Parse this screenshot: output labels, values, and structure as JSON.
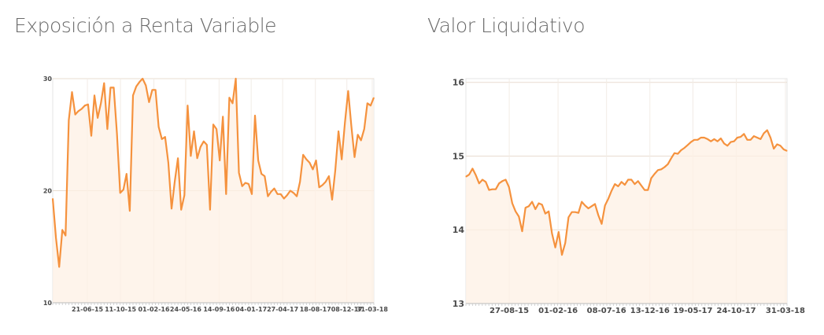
{
  "chart_data": [
    {
      "type": "area",
      "title": "Exposición a Renta Variable",
      "xlabel": "",
      "ylabel": "",
      "ylim": [
        10,
        30
      ],
      "y_ticks": [
        "30",
        "20",
        "10"
      ],
      "x_ticks": [
        "21-06-15",
        "11-10-15",
        "01-02-16",
        "24-05-16",
        "14-09-16",
        "04-01-17",
        "27-04-17",
        "18-08-17",
        "08-12-17",
        "31-03-18"
      ],
      "grid": true,
      "color": "#f5923e",
      "values": [
        19.3,
        15.8,
        13.2,
        16.5,
        16.0,
        26.3,
        28.8,
        26.8,
        27.1,
        27.3,
        27.6,
        27.7,
        24.9,
        28.5,
        26.5,
        27.8,
        29.6,
        25.5,
        29.2,
        29.2,
        25.1,
        19.8,
        20.1,
        21.5,
        18.2,
        28.5,
        29.3,
        29.7,
        30.0,
        29.4,
        27.9,
        29.0,
        29.0,
        25.7,
        24.6,
        24.8,
        22.5,
        18.4,
        20.8,
        22.9,
        18.3,
        19.6,
        27.6,
        23.1,
        25.3,
        22.9,
        23.9,
        24.4,
        24.1,
        18.3,
        25.9,
        25.5,
        22.7,
        26.6,
        19.7,
        28.3,
        27.8,
        30.0,
        21.6,
        20.4,
        20.7,
        20.6,
        19.7,
        26.7,
        22.7,
        21.5,
        21.3,
        19.5,
        19.9,
        20.2,
        19.7,
        19.7,
        19.3,
        19.6,
        20.0,
        19.8,
        19.5,
        20.8,
        23.2,
        22.8,
        22.5,
        21.9,
        22.7,
        20.3,
        20.5,
        20.8,
        21.3,
        19.2,
        21.8,
        25.3,
        22.8,
        26.1,
        28.9,
        25.8,
        23.0,
        25.0,
        24.5,
        25.5,
        27.8,
        27.6,
        28.3
      ]
    },
    {
      "type": "area",
      "title": "Valor Liquidativo",
      "xlabel": "",
      "ylabel": "",
      "ylim": [
        13,
        16.05
      ],
      "y_ticks": [
        "16",
        "15",
        "14",
        "13"
      ],
      "x_ticks": [
        "27-08-15",
        "01-02-16",
        "08-07-16",
        "13-12-16",
        "19-05-17",
        "24-10-17",
        "31-03-18"
      ],
      "grid": true,
      "color": "#f5923e",
      "values": [
        14.72,
        14.75,
        14.83,
        14.74,
        14.63,
        14.68,
        14.65,
        14.54,
        14.55,
        14.55,
        14.63,
        14.66,
        14.68,
        14.58,
        14.36,
        14.25,
        14.18,
        13.98,
        14.3,
        14.32,
        14.38,
        14.28,
        14.36,
        14.34,
        14.22,
        14.25,
        13.95,
        13.76,
        13.97,
        13.66,
        13.82,
        14.17,
        14.24,
        14.24,
        14.23,
        14.38,
        14.33,
        14.29,
        14.32,
        14.35,
        14.2,
        14.08,
        14.33,
        14.42,
        14.53,
        14.62,
        14.59,
        14.65,
        14.61,
        14.68,
        14.68,
        14.62,
        14.66,
        14.6,
        14.54,
        14.54,
        14.7,
        14.76,
        14.81,
        14.82,
        14.85,
        14.89,
        14.97,
        15.04,
        15.03,
        15.08,
        15.11,
        15.15,
        15.19,
        15.22,
        15.22,
        15.25,
        15.25,
        15.23,
        15.2,
        15.23,
        15.2,
        15.24,
        15.17,
        15.14,
        15.19,
        15.2,
        15.25,
        15.26,
        15.3,
        15.22,
        15.22,
        15.27,
        15.25,
        15.23,
        15.31,
        15.35,
        15.25,
        15.1,
        15.16,
        15.14,
        15.09,
        15.07
      ]
    }
  ]
}
